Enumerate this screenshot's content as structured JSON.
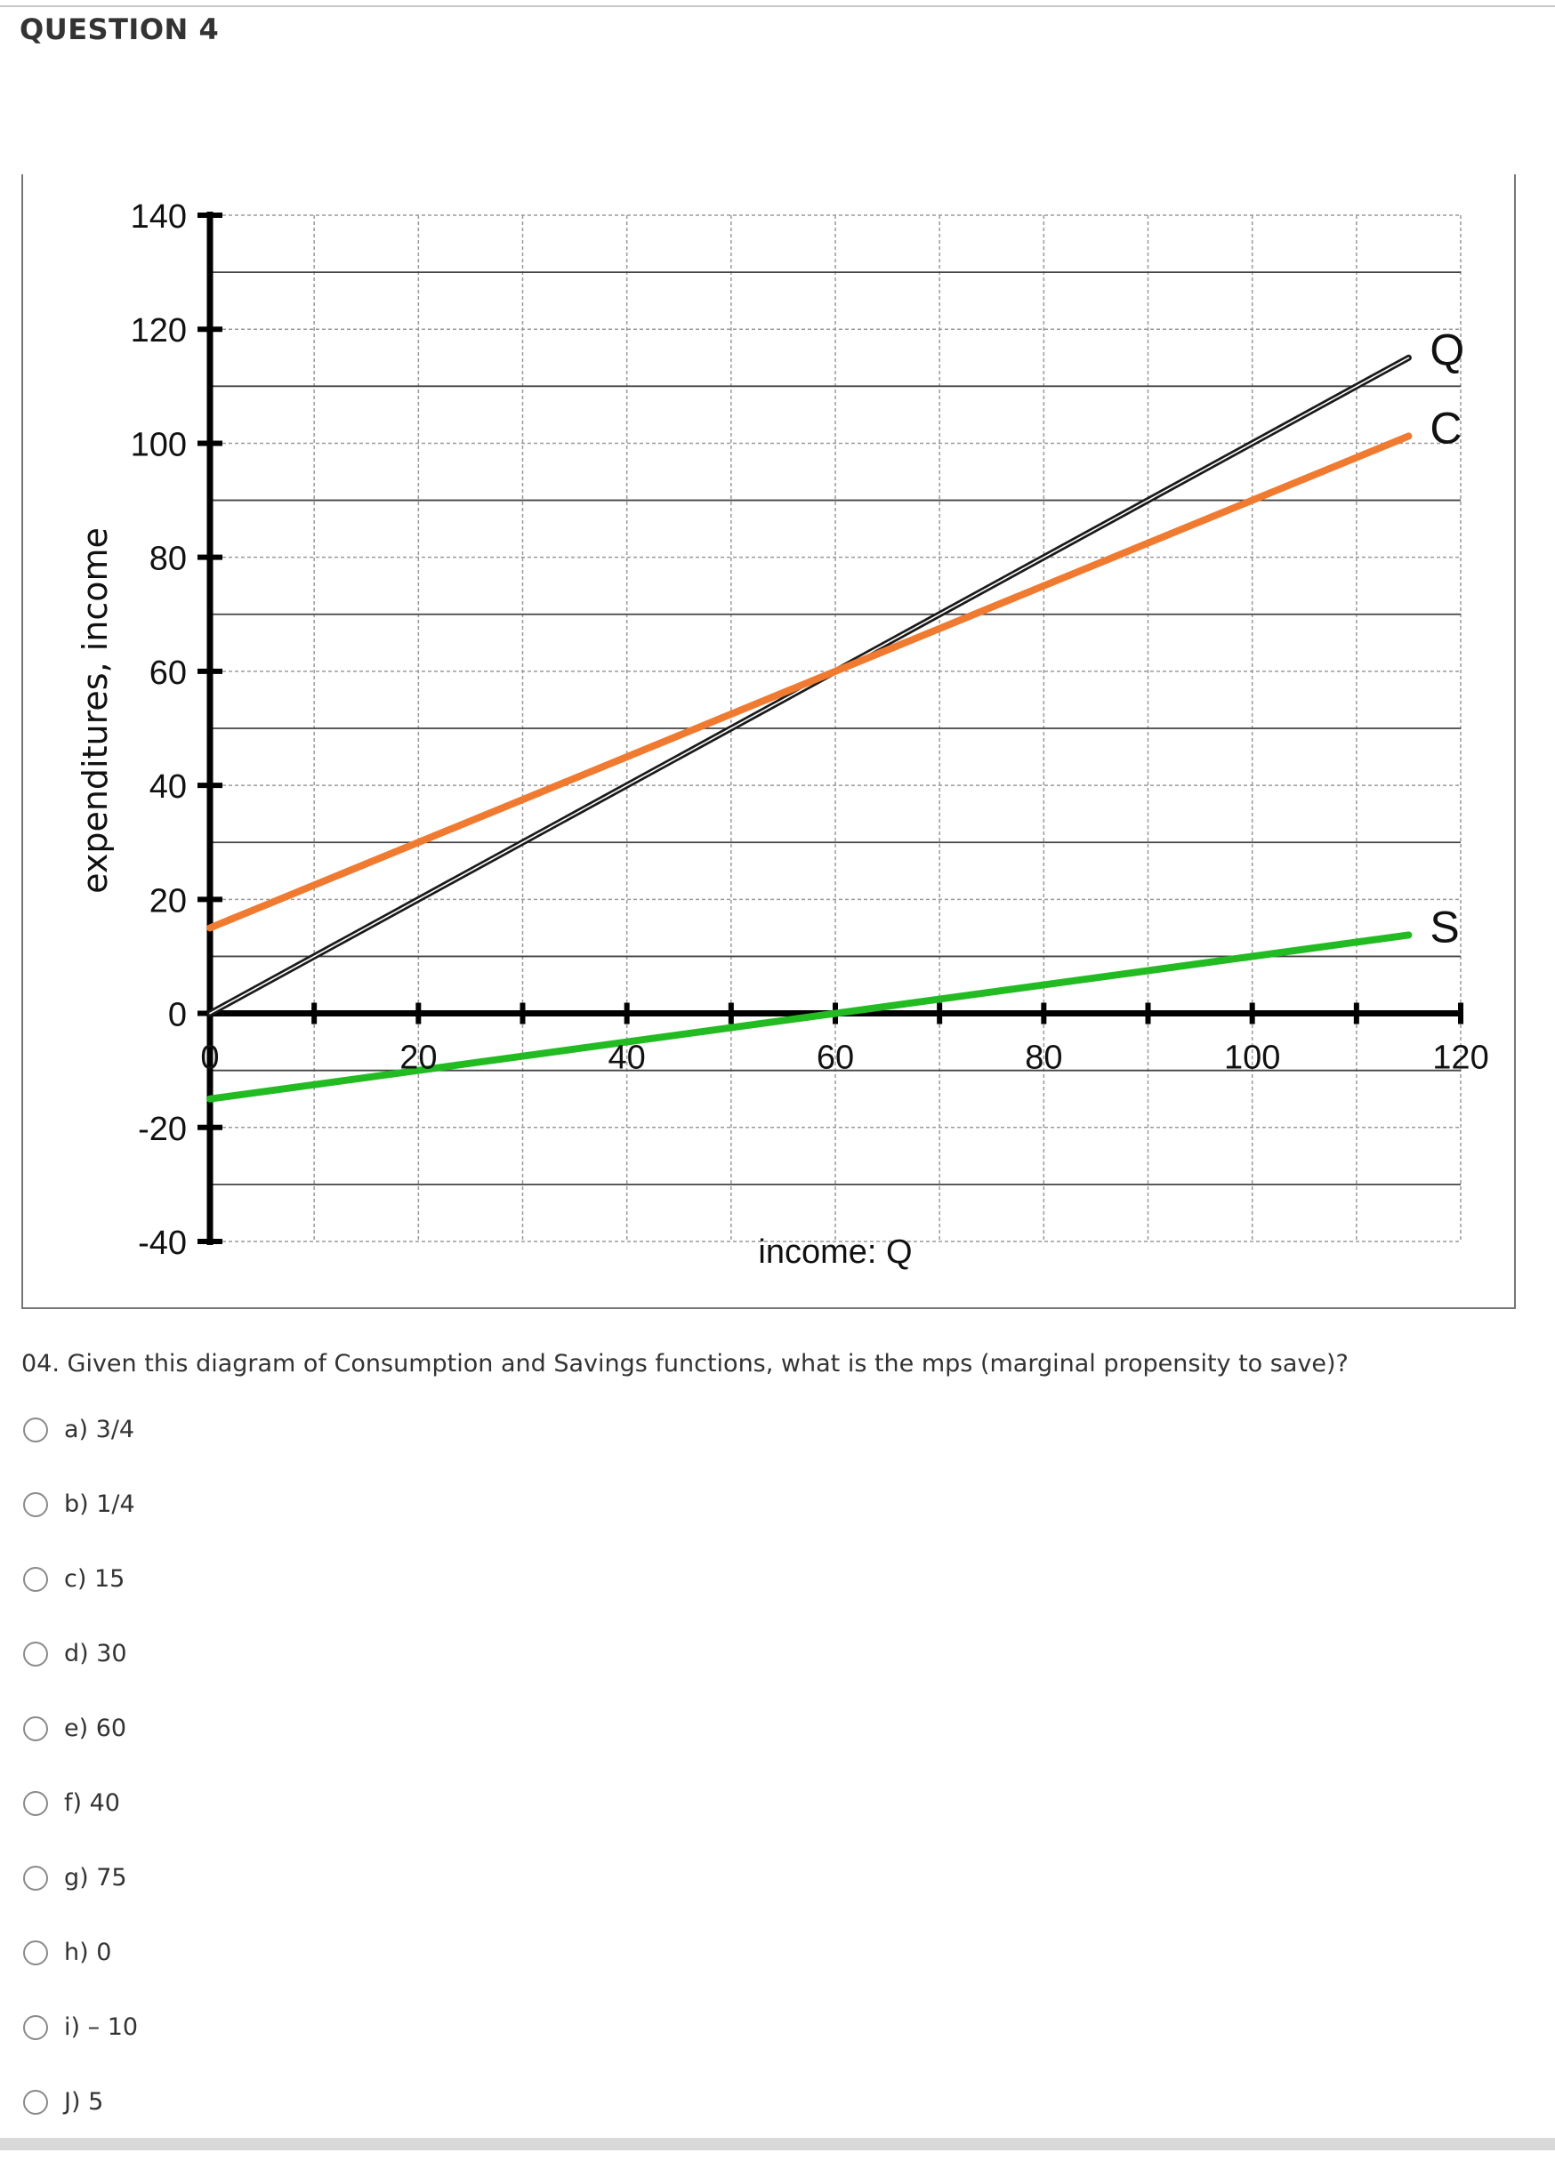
{
  "question": {
    "heading": "QUESTION 4",
    "text": "04. Given this diagram of Consumption and Savings functions, what is the mps (marginal propensity to save)?",
    "options": [
      {
        "label": "a) 3/4"
      },
      {
        "label": "b) 1/4"
      },
      {
        "label": "c) 15"
      },
      {
        "label": "d) 30"
      },
      {
        "label": "e) 60"
      },
      {
        "label": "f) 40"
      },
      {
        "label": "g) 75"
      },
      {
        "label": "h) 0"
      },
      {
        "label": "i) – 10"
      },
      {
        "label": "J) 5"
      }
    ]
  },
  "chart_data": {
    "type": "line",
    "title": "",
    "xlabel": "income: Q",
    "ylabel": "expenditures, income",
    "xlim": [
      0,
      120
    ],
    "ylim": [
      -40,
      140
    ],
    "x_ticks": [
      0,
      20,
      40,
      60,
      80,
      100,
      120
    ],
    "x_tick_labels": [
      "0",
      "20",
      "40",
      "60",
      "80",
      "100",
      "120"
    ],
    "y_ticks": [
      140,
      120,
      100,
      80,
      60,
      40,
      20,
      0,
      -20,
      -40
    ],
    "y_tick_labels": [
      "140",
      "120",
      "100",
      "80",
      "60",
      "40",
      "20",
      "0",
      "-20",
      "-40"
    ],
    "grid": true,
    "series": [
      {
        "name": "Q",
        "color": "#1a1a1a",
        "x": [
          0,
          115
        ],
        "y": [
          0,
          115
        ]
      },
      {
        "name": "C",
        "color": "#f07a30",
        "x": [
          0,
          115
        ],
        "y": [
          15,
          101.25
        ]
      },
      {
        "name": "S",
        "color": "#22bb22",
        "x": [
          0,
          115
        ],
        "y": [
          -15,
          13.75
        ]
      }
    ]
  }
}
